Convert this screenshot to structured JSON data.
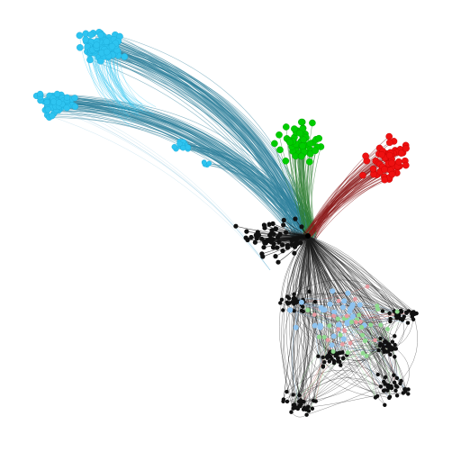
{
  "graph": {
    "type": "network-graph",
    "background": "#ffffff",
    "hub_color": "#000000",
    "clusters": [
      {
        "id": "cyan-top",
        "color": "#2ec4f0",
        "edge_color": "#2d7f9a",
        "node_count": 80
      },
      {
        "id": "cyan-left",
        "color": "#2ec4f0",
        "edge_color": "#2d7f9a",
        "node_count": 70
      },
      {
        "id": "cyan-small",
        "color": "#2ec4f0",
        "edge_color": "#2d7f9a",
        "node_count": 18
      },
      {
        "id": "cyan-tiny",
        "color": "#2ec4f0",
        "edge_color": "#2d7f9a",
        "node_count": 5
      },
      {
        "id": "green",
        "color": "#00cc00",
        "edge_color": "#2e7d32",
        "node_count": 60
      },
      {
        "id": "red",
        "color": "#ee1111",
        "edge_color": "#8b1a1a",
        "node_count": 60
      },
      {
        "id": "black-core",
        "color": "#111111",
        "edge_color": "#222222",
        "node_count": 60
      },
      {
        "id": "black-lower",
        "color": "#111111",
        "edge_color": "#222222",
        "node_count": 200
      },
      {
        "id": "lightblue",
        "color": "#8fc3ef",
        "edge_color": "#8fc3ef",
        "node_count": 30
      },
      {
        "id": "lightgreen",
        "color": "#8fd98f",
        "edge_color": "#8fd98f",
        "node_count": 25
      },
      {
        "id": "pink",
        "color": "#e89aa0",
        "edge_color": "#c06060",
        "node_count": 15
      }
    ]
  }
}
